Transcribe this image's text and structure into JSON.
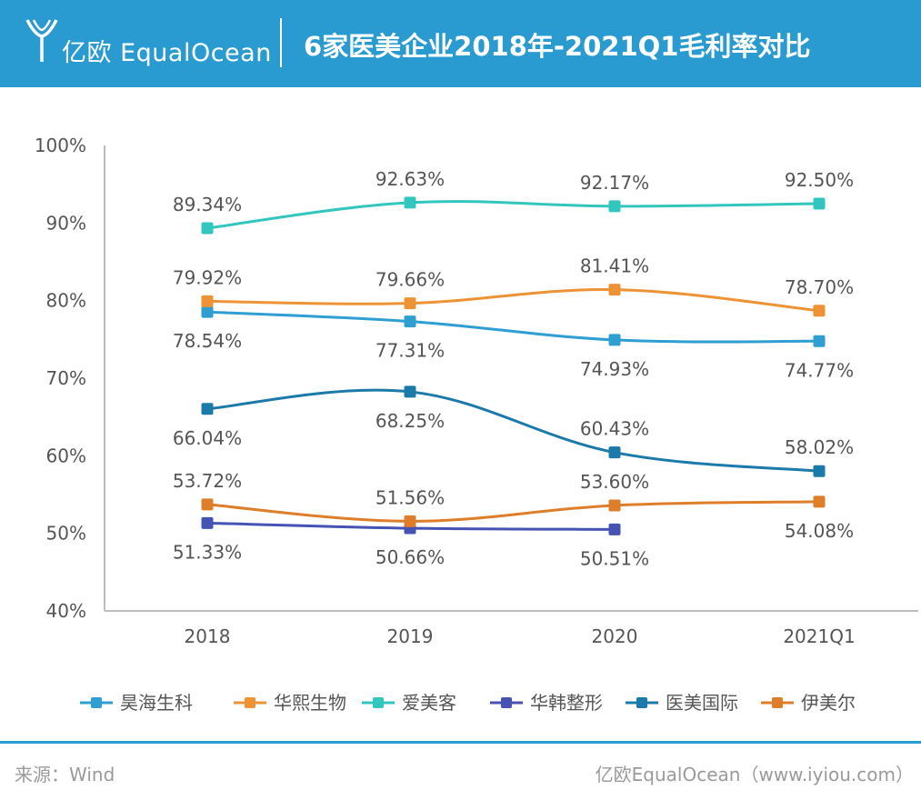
{
  "header": {
    "brand": "亿欧 EqualOcean",
    "title": "6家医美企业2018年-2021Q1毛利率对比"
  },
  "footer": {
    "source": "来源：Wind",
    "credit": "亿欧EqualOcean（www.iyiou.com）"
  },
  "colors": {
    "header_bg": "#2a9bd0",
    "axis": "#bdbdbd",
    "text": "#555555"
  },
  "chart_data": {
    "type": "line",
    "categories": [
      "2018",
      "2019",
      "2020",
      "2021Q1"
    ],
    "ylim": [
      40,
      100
    ],
    "yticks": [
      "40%",
      "50%",
      "60%",
      "70%",
      "80%",
      "90%",
      "100%"
    ],
    "grid": false,
    "legend_position": "bottom",
    "marker": "square",
    "smooth": true,
    "series": [
      {
        "name": "昊海生科",
        "color": "#2e9ed3",
        "values": [
          78.54,
          77.31,
          74.93,
          74.77
        ],
        "labels": [
          "78.54%",
          "77.31%",
          "74.93%",
          "74.77%"
        ],
        "label_pos": [
          "below",
          "below",
          "below",
          "below"
        ]
      },
      {
        "name": "华熙生物",
        "color": "#ee9335",
        "values": [
          79.92,
          79.66,
          81.41,
          78.7
        ],
        "labels": [
          "79.92%",
          "79.66%",
          "81.41%",
          "78.70%"
        ],
        "label_pos": [
          "above",
          "above",
          "above",
          "above"
        ]
      },
      {
        "name": "爱美客",
        "color": "#33c6bf",
        "values": [
          89.34,
          92.63,
          92.17,
          92.5
        ],
        "labels": [
          "89.34%",
          "92.63%",
          "92.17%",
          "92.50%"
        ],
        "label_pos": [
          "above",
          "above",
          "above",
          "above"
        ]
      },
      {
        "name": "华韩整形",
        "color": "#4553b4",
        "values": [
          51.33,
          50.66,
          50.51,
          null
        ],
        "labels": [
          "51.33%",
          "50.66%",
          "50.51%",
          ""
        ],
        "label_pos": [
          "below",
          "below",
          "below",
          "below"
        ]
      },
      {
        "name": "医美国际",
        "color": "#1c7aaa",
        "values": [
          66.04,
          68.25,
          60.43,
          58.02
        ],
        "labels": [
          "66.04%",
          "68.25%",
          "60.43%",
          "58.02%"
        ],
        "label_pos": [
          "below",
          "below",
          "above",
          "above"
        ]
      },
      {
        "name": "伊美尔",
        "color": "#de7d2a",
        "values": [
          53.72,
          51.56,
          53.6,
          54.08
        ],
        "labels": [
          "53.72%",
          "51.56%",
          "53.60%",
          "54.08%"
        ],
        "label_pos": [
          "above",
          "above",
          "above",
          "below"
        ]
      }
    ]
  }
}
